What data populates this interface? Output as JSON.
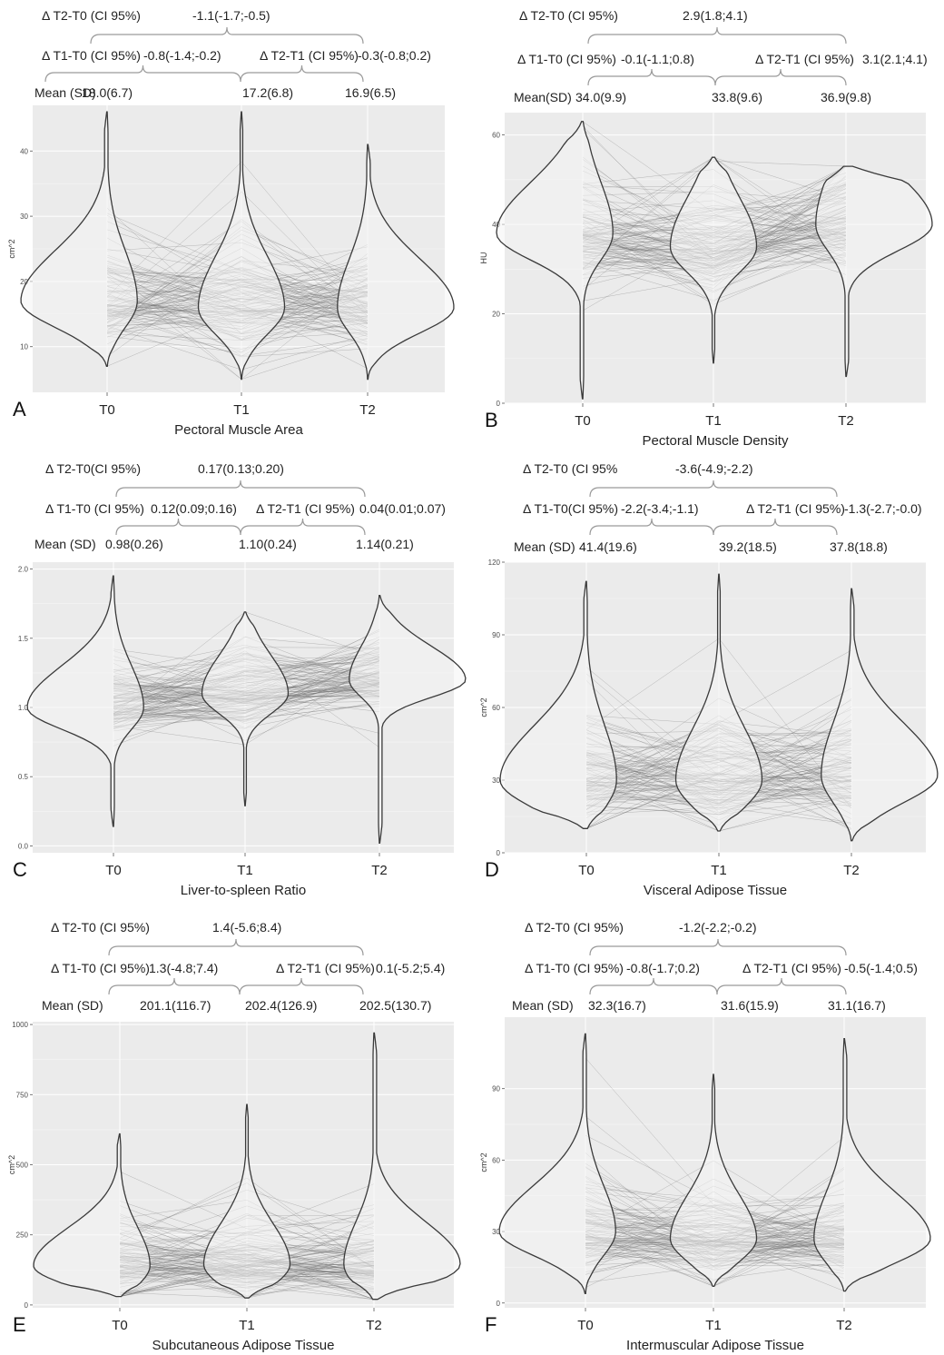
{
  "chart_data": [
    {
      "type": "violin",
      "panel_letter": "A",
      "xlabel": "Pectoral Muscle Area",
      "ylabel": "cm^2",
      "categories": [
        "T0",
        "T1",
        "T2"
      ],
      "ylim": [
        3,
        47
      ],
      "yticks": [
        10,
        20,
        30,
        40
      ],
      "ytick_labels": [
        "10",
        "20",
        "30",
        "40"
      ],
      "violins": [
        {
          "min": 7,
          "max": 46,
          "mode": 17,
          "sd": 6.7
        },
        {
          "min": 5,
          "max": 46,
          "mode": 16,
          "sd": 6.8
        },
        {
          "min": 5,
          "max": 41,
          "mode": 16,
          "sd": 6.5
        }
      ],
      "annotations": {
        "t2_t0_label": "Δ T2-T0 (CI 95%)",
        "t2_t0_value": "-1.1(-1.7;-0.5)",
        "t1_t0_label": "Δ T1-T0 (CI 95%)",
        "t1_t0_value": "-0.8(-1.4;-0.2)",
        "t2_t1_label": "Δ T2-T1 (CI 95%)",
        "t2_t1_value": "-0.3(-0.8;0.2)",
        "mean_label": "Mean (SD)",
        "mean_values": [
          "18.0(6.7)",
          "17.2(6.8)",
          "16.9(6.5)"
        ]
      }
    },
    {
      "type": "violin",
      "panel_letter": "B",
      "xlabel": "Pectoral Muscle Density",
      "ylabel": "HU",
      "categories": [
        "T0",
        "T1",
        "T2"
      ],
      "ylim": [
        0,
        65
      ],
      "yticks": [
        0,
        20,
        40,
        60
      ],
      "ytick_labels": [
        "0",
        "20",
        "40",
        "60"
      ],
      "violins": [
        {
          "min": 1,
          "max": 63,
          "mode": 38,
          "sd": 9.9
        },
        {
          "min": 9,
          "max": 55,
          "mode": 35,
          "sd": 9.6
        },
        {
          "min": 6,
          "max": 53,
          "mode": 40,
          "sd": 9.8
        }
      ],
      "annotations": {
        "t2_t0_label": "Δ T2-T0 (CI 95%)",
        "t2_t0_value": "2.9(1.8;4.1)",
        "t1_t0_label": "Δ T1-T0 (CI 95%)",
        "t1_t0_value": "-0.1(-1.1;0.8)",
        "t2_t1_label": "Δ T2-T1 (CI 95%)",
        "t2_t1_value": "3.1(2.1;4.1)",
        "mean_label": "Mean(SD)",
        "mean_values": [
          "34.0(9.9)",
          "33.8(9.6)",
          "36.9(9.8)"
        ]
      }
    },
    {
      "type": "violin",
      "panel_letter": "C",
      "xlabel": "Liver-to-spleen Ratio",
      "ylabel": "",
      "categories": [
        "T0",
        "T1",
        "T2"
      ],
      "ylim": [
        -0.05,
        2.05
      ],
      "yticks": [
        0.0,
        0.5,
        1.0,
        1.5,
        2.0
      ],
      "ytick_labels": [
        "0.0",
        "0.5",
        "1.0",
        "1.5",
        "2.0"
      ],
      "violins": [
        {
          "min": 0.14,
          "max": 1.95,
          "mode": 1.0,
          "sd": 0.26
        },
        {
          "min": 0.29,
          "max": 1.69,
          "mode": 1.1,
          "sd": 0.24
        },
        {
          "min": 0.02,
          "max": 1.81,
          "mode": 1.2,
          "sd": 0.21
        }
      ],
      "annotations": {
        "t2_t0_label": "Δ T2-T0(CI 95%)",
        "t2_t0_value": "0.17(0.13;0.20)",
        "t1_t0_label": "Δ T1-T0 (CI 95%)",
        "t1_t0_value": "0.12(0.09;0.16)",
        "t2_t1_label": "Δ T2-T1 (CI 95%)",
        "t2_t1_value": "0.04(0.01;0.07)",
        "mean_label": "Mean (SD)",
        "mean_values": [
          "0.98(0.26)",
          "1.10(0.24)",
          "1.14(0.21)"
        ]
      }
    },
    {
      "type": "violin",
      "panel_letter": "D",
      "xlabel": "Visceral Adipose Tissue",
      "ylabel": "cm^2",
      "categories": [
        "T0",
        "T1",
        "T2"
      ],
      "ylim": [
        0,
        120
      ],
      "yticks": [
        0,
        30,
        60,
        90,
        120
      ],
      "ytick_labels": [
        "0",
        "30",
        "60",
        "90",
        "120"
      ],
      "violins": [
        {
          "min": 10,
          "max": 112,
          "mode": 30,
          "sd": 19.6
        },
        {
          "min": 9,
          "max": 115,
          "mode": 30,
          "sd": 18.5
        },
        {
          "min": 5,
          "max": 109,
          "mode": 32,
          "sd": 18.8
        }
      ],
      "annotations": {
        "t2_t0_label": "Δ T2-T0 (CI 95%",
        "t2_t0_value": "-3.6(-4.9;-2.2)",
        "t1_t0_label": "Δ T1-T0(CI 95%)",
        "t1_t0_value": "-2.2(-3.4;-1.1)",
        "t2_t1_label": "Δ T2-T1 (CI 95%)",
        "t2_t1_value": "-1.3(-2.7;-0.0)",
        "mean_label": "Mean (SD)",
        "mean_values": [
          "41.4(19.6)",
          "39.2(18.5)",
          "37.8(18.8)"
        ]
      }
    },
    {
      "type": "violin",
      "panel_letter": "E",
      "xlabel": "Subcutaneous Adipose Tissue",
      "ylabel": "cm^2",
      "categories": [
        "T0",
        "T1",
        "T2"
      ],
      "ylim": [
        -10,
        1010
      ],
      "yticks": [
        0,
        250,
        500,
        750,
        1000
      ],
      "ytick_labels": [
        "0",
        "250",
        "500",
        "750",
        "1000"
      ],
      "violins": [
        {
          "min": 30,
          "max": 610,
          "mode": 140,
          "sd": 116.7
        },
        {
          "min": 25,
          "max": 715,
          "mode": 145,
          "sd": 126.9
        },
        {
          "min": 20,
          "max": 970,
          "mode": 145,
          "sd": 130.7
        }
      ],
      "annotations": {
        "t2_t0_label": "Δ T2-T0 (CI 95%)",
        "t2_t0_value": "1.4(-5.6;8.4)",
        "t1_t0_label": "Δ T1-T0 (CI 95%)",
        "t1_t0_value": "1.3(-4.8;7.4)",
        "t2_t1_label": "Δ T2-T1 (CI 95%)",
        "t2_t1_value": "0.1(-5.2;5.4)",
        "mean_label": "Mean (SD)",
        "mean_values": [
          "201.1(116.7)",
          "202.4(126.9)",
          "202.5(130.7)"
        ]
      }
    },
    {
      "type": "violin",
      "panel_letter": "F",
      "xlabel": "Intermuscular Adipose Tissue",
      "ylabel": "cm^2",
      "categories": [
        "T0",
        "T1",
        "T2"
      ],
      "ylim": [
        -2,
        120
      ],
      "yticks": [
        0,
        30,
        60,
        90
      ],
      "ytick_labels": [
        "0",
        "30",
        "60",
        "90"
      ],
      "violins": [
        {
          "min": 4,
          "max": 113,
          "mode": 30,
          "sd": 16.7
        },
        {
          "min": 7,
          "max": 96,
          "mode": 27,
          "sd": 15.9
        },
        {
          "min": 5,
          "max": 111,
          "mode": 27,
          "sd": 16.7
        }
      ],
      "annotations": {
        "t2_t0_label": "Δ T2-T0 (CI 95%)",
        "t2_t0_value": "-1.2(-2.2;-0.2)",
        "t1_t0_label": "Δ T1-T0 (CI 95%)",
        "t1_t0_value": "-0.8(-1.7;0.2)",
        "t2_t1_label": "Δ T2-T1 (CI 95%)",
        "t2_t1_value": "-0.5(-1.4;0.5)",
        "mean_label": "Mean (SD)",
        "mean_values": [
          "32.3(16.7)",
          "31.6(15.9)",
          "31.1(16.7)"
        ]
      }
    }
  ]
}
